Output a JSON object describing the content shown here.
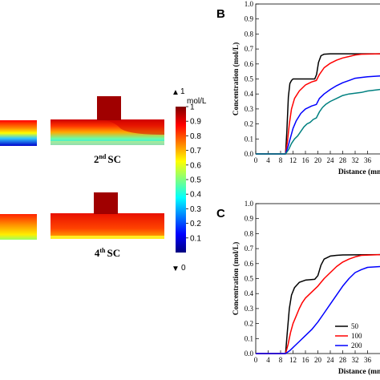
{
  "panel_a": {
    "captions": [
      {
        "num": "2",
        "sup": "nd",
        "text": "SC"
      },
      {
        "num": "4",
        "sup": "th",
        "text": "SC"
      }
    ],
    "colorbar": {
      "max_label": "1",
      "min_label": "0",
      "unit": "mol/L",
      "max_marker": "▲",
      "min_marker": "▼",
      "ticks": [
        "1",
        "0.9",
        "0.8",
        "0.7",
        "0.6",
        "0.5",
        "0.4",
        "0.3",
        "0.2",
        "0.1"
      ],
      "colormap": [
        "#00007f",
        "#0000ff",
        "#007fff",
        "#00ffff",
        "#7fff7f",
        "#ffff00",
        "#ff7f00",
        "#ff0000",
        "#7f0000"
      ]
    }
  },
  "chart_data": [
    {
      "type": "line",
      "panel_label": "B",
      "xlabel": "Distance (mm)",
      "ylabel": "Concentration (mol/L)",
      "xlim": [
        0,
        40
      ],
      "ylim": [
        0,
        1.0
      ],
      "x_ticks": [
        0,
        4,
        8,
        12,
        16,
        20,
        24,
        28,
        32,
        36
      ],
      "y_ticks": [
        "0.0",
        "0.1",
        "0.2",
        "0.3",
        "0.4",
        "0.5",
        "0.6",
        "0.7",
        "0.8",
        "0.9",
        "1.0"
      ],
      "series": [
        {
          "color": "#000000",
          "points": [
            [
              0,
              0
            ],
            [
              9.6,
              0
            ],
            [
              10,
              0.15
            ],
            [
              10.5,
              0.38
            ],
            [
              11,
              0.47
            ],
            [
              11.5,
              0.49
            ],
            [
              12,
              0.5
            ],
            [
              19,
              0.5
            ],
            [
              19.6,
              0.53
            ],
            [
              20.2,
              0.61
            ],
            [
              21,
              0.655
            ],
            [
              22,
              0.665
            ],
            [
              24,
              0.668
            ],
            [
              40,
              0.668
            ]
          ]
        },
        {
          "color": "#ff0000",
          "points": [
            [
              0,
              0
            ],
            [
              9.6,
              0
            ],
            [
              10.2,
              0.08
            ],
            [
              10.8,
              0.2
            ],
            [
              11.5,
              0.3
            ],
            [
              12.5,
              0.37
            ],
            [
              14,
              0.42
            ],
            [
              16,
              0.46
            ],
            [
              18,
              0.48
            ],
            [
              19.5,
              0.49
            ],
            [
              20.5,
              0.53
            ],
            [
              22,
              0.575
            ],
            [
              24,
              0.605
            ],
            [
              26,
              0.625
            ],
            [
              28,
              0.64
            ],
            [
              30,
              0.65
            ],
            [
              32,
              0.66
            ],
            [
              34,
              0.665
            ],
            [
              40,
              0.668
            ]
          ]
        },
        {
          "color": "#0000ff",
          "points": [
            [
              0,
              0
            ],
            [
              9.6,
              0
            ],
            [
              10.4,
              0.05
            ],
            [
              11.2,
              0.11
            ],
            [
              12,
              0.17
            ],
            [
              13,
              0.22
            ],
            [
              14.5,
              0.27
            ],
            [
              16,
              0.3
            ],
            [
              18,
              0.32
            ],
            [
              19.5,
              0.33
            ],
            [
              20.5,
              0.37
            ],
            [
              22,
              0.4
            ],
            [
              24,
              0.43
            ],
            [
              26,
              0.455
            ],
            [
              28,
              0.475
            ],
            [
              30,
              0.49
            ],
            [
              32,
              0.505
            ],
            [
              34,
              0.51
            ],
            [
              36,
              0.515
            ],
            [
              40,
              0.52
            ]
          ]
        },
        {
          "color": "#008080",
          "points": [
            [
              0,
              0
            ],
            [
              9.6,
              0
            ],
            [
              10.6,
              0.03
            ],
            [
              11.5,
              0.07
            ],
            [
              12.5,
              0.1
            ],
            [
              13.5,
              0.12
            ],
            [
              14.5,
              0.15
            ],
            [
              15.5,
              0.18
            ],
            [
              16.5,
              0.2
            ],
            [
              17.5,
              0.21
            ],
            [
              18.5,
              0.23
            ],
            [
              19.5,
              0.24
            ],
            [
              20.5,
              0.28
            ],
            [
              21.5,
              0.31
            ],
            [
              22.5,
              0.33
            ],
            [
              24,
              0.35
            ],
            [
              26,
              0.37
            ],
            [
              28,
              0.39
            ],
            [
              30,
              0.4
            ],
            [
              32,
              0.405
            ],
            [
              34,
              0.41
            ],
            [
              36,
              0.42
            ],
            [
              40,
              0.43
            ]
          ]
        }
      ]
    },
    {
      "type": "line",
      "panel_label": "C",
      "xlabel": "Distance (mm)",
      "ylabel": "Concentration (mol/L)",
      "xlim": [
        0,
        40
      ],
      "ylim": [
        0,
        1.0
      ],
      "x_ticks": [
        0,
        4,
        8,
        12,
        16,
        20,
        24,
        28,
        32,
        36
      ],
      "y_ticks": [
        "0.0",
        "0.1",
        "0.2",
        "0.3",
        "0.4",
        "0.5",
        "0.6",
        "0.7",
        "0.8",
        "0.9",
        "1.0"
      ],
      "legend": {
        "placement": "bottom-right",
        "entries": [
          "50",
          "100",
          "200"
        ]
      },
      "series": [
        {
          "name": "50",
          "color": "#000000",
          "points": [
            [
              0,
              0
            ],
            [
              9.6,
              0
            ],
            [
              10.2,
              0.15
            ],
            [
              10.8,
              0.3
            ],
            [
              11.5,
              0.39
            ],
            [
              12.5,
              0.44
            ],
            [
              14,
              0.475
            ],
            [
              16,
              0.49
            ],
            [
              19,
              0.495
            ],
            [
              20,
              0.52
            ],
            [
              21,
              0.59
            ],
            [
              22,
              0.63
            ],
            [
              24,
              0.65
            ],
            [
              26,
              0.655
            ],
            [
              28,
              0.658
            ],
            [
              40,
              0.66
            ]
          ]
        },
        {
          "name": "100",
          "color": "#ff0000",
          "points": [
            [
              0,
              0
            ],
            [
              9.6,
              0
            ],
            [
              10.4,
              0.06
            ],
            [
              11.2,
              0.14
            ],
            [
              12,
              0.2
            ],
            [
              13,
              0.25
            ],
            [
              14,
              0.3
            ],
            [
              15,
              0.34
            ],
            [
              16,
              0.37
            ],
            [
              18,
              0.41
            ],
            [
              20,
              0.45
            ],
            [
              22,
              0.5
            ],
            [
              24,
              0.54
            ],
            [
              26,
              0.58
            ],
            [
              28,
              0.61
            ],
            [
              30,
              0.63
            ],
            [
              32,
              0.645
            ],
            [
              34,
              0.655
            ],
            [
              40,
              0.66
            ]
          ]
        },
        {
          "name": "200",
          "color": "#0000ff",
          "points": [
            [
              0,
              0
            ],
            [
              9.6,
              0
            ],
            [
              11,
              0.02
            ],
            [
              12.5,
              0.05
            ],
            [
              14,
              0.08
            ],
            [
              16,
              0.12
            ],
            [
              18,
              0.16
            ],
            [
              20,
              0.21
            ],
            [
              22,
              0.27
            ],
            [
              24,
              0.33
            ],
            [
              26,
              0.39
            ],
            [
              28,
              0.45
            ],
            [
              30,
              0.5
            ],
            [
              32,
              0.54
            ],
            [
              34,
              0.56
            ],
            [
              36,
              0.575
            ],
            [
              40,
              0.58
            ]
          ]
        }
      ]
    }
  ]
}
